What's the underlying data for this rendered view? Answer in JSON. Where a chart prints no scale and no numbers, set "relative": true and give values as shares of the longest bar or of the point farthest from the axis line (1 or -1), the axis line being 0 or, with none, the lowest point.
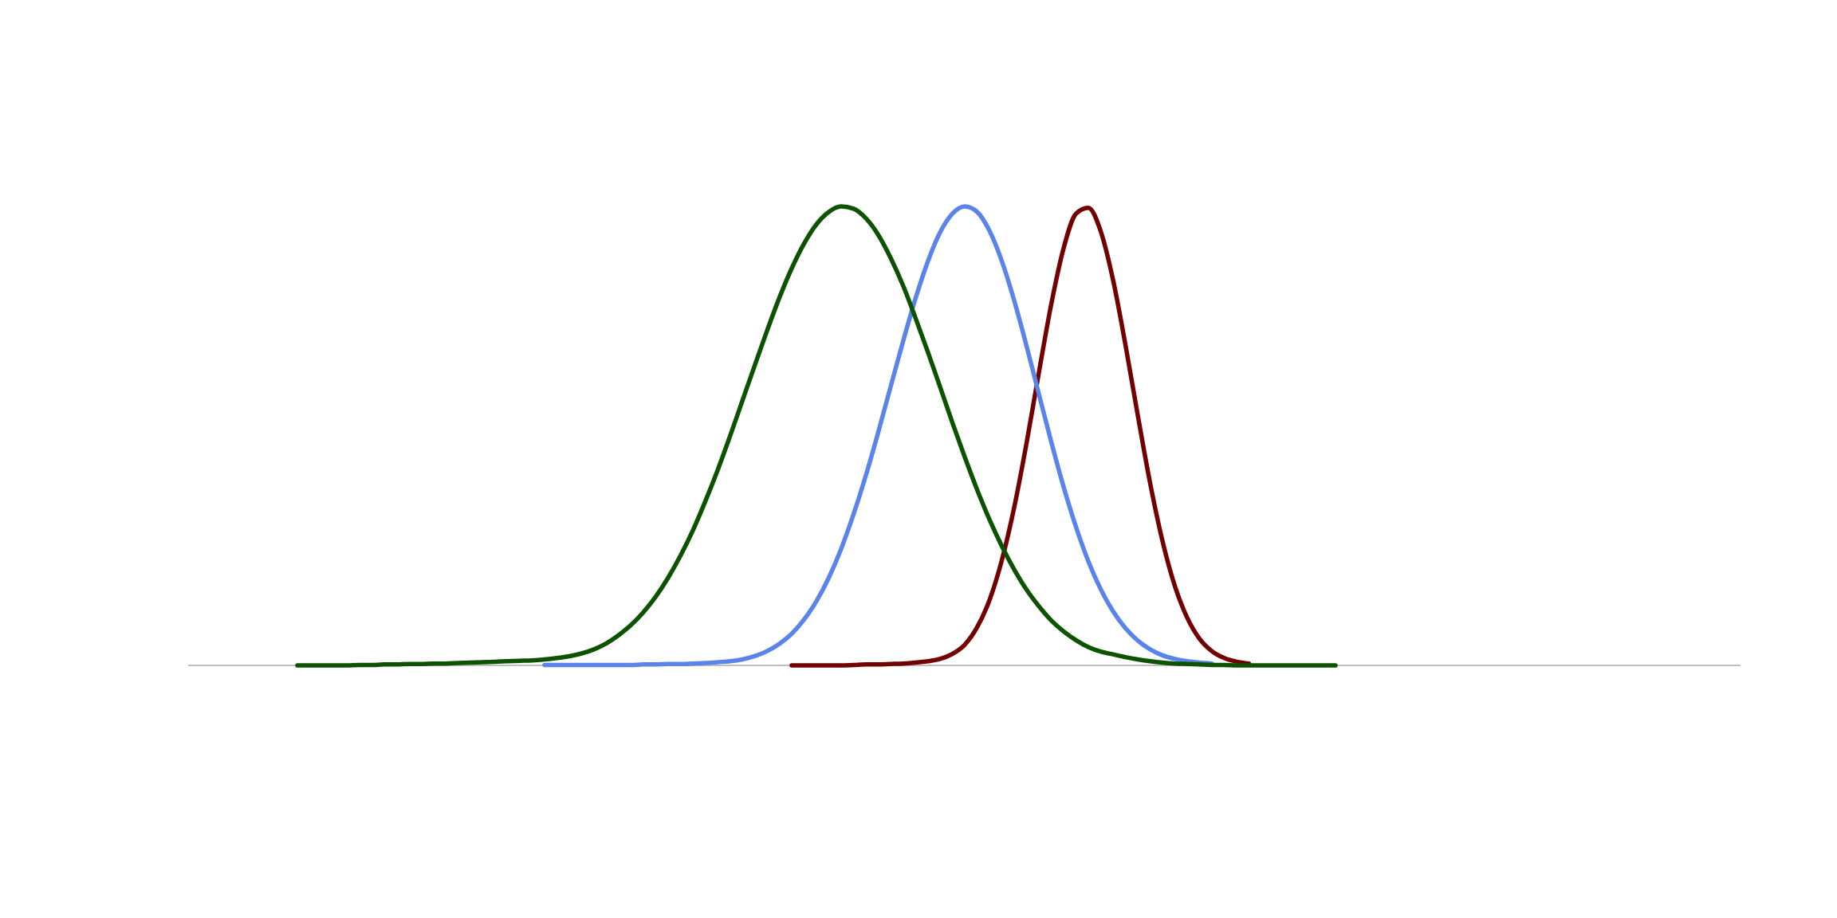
{
  "chart_data": {
    "type": "line",
    "relative": true,
    "categories": [
      null,
      null,
      null,
      null,
      null,
      null,
      null,
      null,
      null,
      null,
      null,
      null,
      null,
      null,
      null,
      null,
      null,
      null,
      null,
      null,
      null,
      null,
      null,
      null,
      null,
      null,
      null,
      null,
      null,
      null,
      null,
      null,
      null,
      null,
      null,
      null,
      null,
      null,
      null,
      null,
      null,
      null,
      null,
      null,
      null,
      null,
      null,
      null,
      null,
      null,
      null,
      null,
      null,
      null,
      null,
      null,
      null,
      null,
      null,
      null,
      null,
      null,
      null,
      null,
      null,
      null,
      null,
      null,
      null,
      null,
      null,
      null,
      null,
      null,
      null,
      null,
      null,
      null,
      null,
      null,
      null,
      null,
      null,
      null,
      null
    ],
    "series": [
      {
        "color": "#720000",
        "values": [
          null,
          null,
          null,
          null,
          null,
          null,
          null,
          null,
          null,
          null,
          null,
          null,
          null,
          null,
          null,
          null,
          null,
          null,
          null,
          null,
          null,
          null,
          null,
          null,
          null,
          null,
          null,
          null,
          null,
          null,
          null,
          null,
          null,
          null,
          null,
          null,
          null,
          null,
          null,
          null,
          0,
          0,
          0,
          0,
          0,
          0.001,
          0.002,
          0.002,
          0.003,
          0.004,
          0.006,
          0.009,
          0.014,
          0.025,
          0.045,
          0.083,
          0.142,
          0.229,
          0.344,
          0.484,
          0.638,
          0.787,
          0.909,
          0.984,
          0.997,
          0.946,
          0.84,
          0.699,
          0.545,
          0.397,
          0.271,
          0.173,
          0.104,
          0.058,
          0.031,
          0.016,
          0.008,
          0.004,
          null,
          null,
          null,
          null,
          null,
          null,
          null
        ]
      },
      {
        "color": "#5b84ea",
        "values": [
          null,
          null,
          null,
          null,
          null,
          null,
          null,
          null,
          null,
          null,
          null,
          null,
          null,
          null,
          null,
          null,
          null,
          null,
          null,
          null,
          0.001,
          0.001,
          0.001,
          0.001,
          0.001,
          0.001,
          0.001,
          0.001,
          0.002,
          0.002,
          0.003,
          0.003,
          0.004,
          0.005,
          0.007,
          0.009,
          0.013,
          0.02,
          0.031,
          0.047,
          0.069,
          0.1,
          0.14,
          0.191,
          0.254,
          0.329,
          0.414,
          0.508,
          0.607,
          0.705,
          0.798,
          0.879,
          0.943,
          0.984,
          1,
          0.988,
          0.947,
          0.881,
          0.795,
          0.696,
          0.591,
          0.487,
          0.389,
          0.302,
          0.227,
          0.166,
          0.118,
          0.081,
          0.054,
          0.035,
          0.022,
          0.014,
          0.009,
          0.006,
          0.004,
          null,
          null,
          null,
          null,
          null,
          null,
          null,
          null,
          null,
          null
        ]
      },
      {
        "color": "#0d5200",
        "values": [
          0,
          0,
          0,
          0,
          0,
          0.001,
          0.001,
          0.002,
          0.002,
          0.003,
          0.003,
          0.004,
          0.004,
          0.005,
          0.006,
          0.007,
          0.008,
          0.009,
          0.01,
          0.011,
          0.013,
          0.016,
          0.02,
          0.026,
          0.035,
          0.048,
          0.066,
          0.088,
          0.116,
          0.15,
          0.191,
          0.239,
          0.294,
          0.357,
          0.425,
          0.499,
          0.576,
          0.653,
          0.729,
          0.801,
          0.865,
          0.919,
          0.961,
          0.988,
          1,
          0.995,
          0.974,
          0.938,
          0.888,
          0.828,
          0.758,
          0.684,
          0.607,
          0.529,
          0.454,
          0.383,
          0.318,
          0.26,
          0.209,
          0.165,
          0.129,
          0.098,
          0.074,
          0.055,
          0.04,
          0.03,
          0.024,
          0.018,
          0.013,
          0.009,
          0.006,
          0.004,
          0.003,
          0.002,
          0.001,
          0.001,
          0,
          0,
          0,
          0,
          0,
          0,
          0,
          0,
          0
        ]
      }
    ]
  }
}
